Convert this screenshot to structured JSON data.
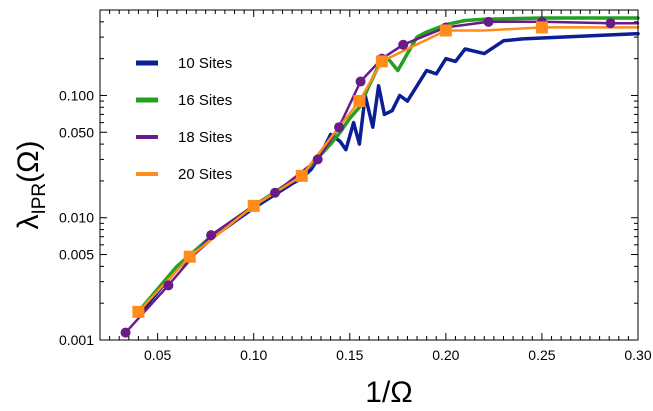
{
  "chart_data": {
    "type": "line",
    "xlabel": "1/Ω",
    "ylabel_main": "λ",
    "ylabel_sub": "IPR",
    "ylabel_suffix": "(Ω)",
    "xlim": [
      0.02,
      0.3
    ],
    "ylim": [
      0.001,
      0.5
    ],
    "yscale": "log",
    "grid": false,
    "legend_position": "top-left",
    "x_ticks": [
      {
        "value": 0.05,
        "label": "0.05"
      },
      {
        "value": 0.1,
        "label": "0.10"
      },
      {
        "value": 0.15,
        "label": "0.15"
      },
      {
        "value": 0.2,
        "label": "0.20"
      },
      {
        "value": 0.25,
        "label": "0.25"
      },
      {
        "value": 0.3,
        "label": "0.30"
      }
    ],
    "y_ticks": [
      {
        "value": 0.001,
        "label": "0.001"
      },
      {
        "value": 0.005,
        "label": "0.005"
      },
      {
        "value": 0.01,
        "label": "0.010"
      },
      {
        "value": 0.05,
        "label": "0.050"
      },
      {
        "value": 0.1,
        "label": "0.100"
      }
    ],
    "series": [
      {
        "name": "10 Sites",
        "color": "#0a1e96",
        "width": 3.5,
        "marker": "none",
        "x": [
          0.04,
          0.06,
          0.08,
          0.1,
          0.12,
          0.125,
          0.13,
          0.135,
          0.14,
          0.145,
          0.148,
          0.152,
          0.155,
          0.158,
          0.162,
          0.165,
          0.168,
          0.172,
          0.176,
          0.18,
          0.185,
          0.19,
          0.195,
          0.2,
          0.205,
          0.21,
          0.22,
          0.23,
          0.24,
          0.26,
          0.28,
          0.3
        ],
        "y": [
          0.0016,
          0.0038,
          0.0072,
          0.012,
          0.019,
          0.021,
          0.025,
          0.033,
          0.048,
          0.042,
          0.036,
          0.06,
          0.04,
          0.1,
          0.055,
          0.12,
          0.07,
          0.075,
          0.1,
          0.09,
          0.12,
          0.16,
          0.15,
          0.2,
          0.19,
          0.24,
          0.22,
          0.28,
          0.29,
          0.3,
          0.31,
          0.32
        ]
      },
      {
        "name": "16 Sites",
        "color": "#22a022",
        "width": 3.5,
        "marker": "none",
        "x": [
          0.04,
          0.06,
          0.08,
          0.1,
          0.12,
          0.13,
          0.14,
          0.145,
          0.15,
          0.155,
          0.16,
          0.163,
          0.166,
          0.17,
          0.175,
          0.18,
          0.185,
          0.19,
          0.2,
          0.21,
          0.22,
          0.25,
          0.28,
          0.3
        ],
        "y": [
          0.0017,
          0.004,
          0.0075,
          0.0125,
          0.02,
          0.027,
          0.04,
          0.05,
          0.065,
          0.08,
          0.12,
          0.15,
          0.19,
          0.2,
          0.16,
          0.22,
          0.3,
          0.33,
          0.38,
          0.41,
          0.42,
          0.43,
          0.43,
          0.43
        ]
      },
      {
        "name": "18 Sites",
        "color": "#6a1b8a",
        "width": 2.5,
        "marker": "circle",
        "x": [
          0.0333,
          0.0556,
          0.0778,
          0.1,
          0.1111,
          0.1333,
          0.1444,
          0.1556,
          0.1667,
          0.1778,
          0.2,
          0.2222,
          0.25,
          0.2857,
          0.3
        ],
        "y": [
          0.00115,
          0.0028,
          0.0072,
          0.0125,
          0.016,
          0.03,
          0.055,
          0.13,
          0.2,
          0.26,
          0.36,
          0.4,
          0.4,
          0.39,
          0.39
        ],
        "marker_indices": [
          0,
          1,
          2,
          3,
          4,
          5,
          6,
          7,
          8,
          9,
          10,
          11,
          12,
          13
        ]
      },
      {
        "name": "20 Sites",
        "color": "#ff8c1a",
        "width": 2.5,
        "marker": "square",
        "x": [
          0.04,
          0.0667,
          0.1,
          0.125,
          0.14,
          0.155,
          0.1667,
          0.18,
          0.2,
          0.22,
          0.25,
          0.28,
          0.3
        ],
        "y": [
          0.0017,
          0.0048,
          0.0125,
          0.022,
          0.045,
          0.09,
          0.19,
          0.24,
          0.34,
          0.34,
          0.36,
          0.36,
          0.36
        ],
        "marker_indices": [
          0,
          1,
          2,
          3,
          5,
          6,
          8,
          10
        ]
      }
    ]
  }
}
